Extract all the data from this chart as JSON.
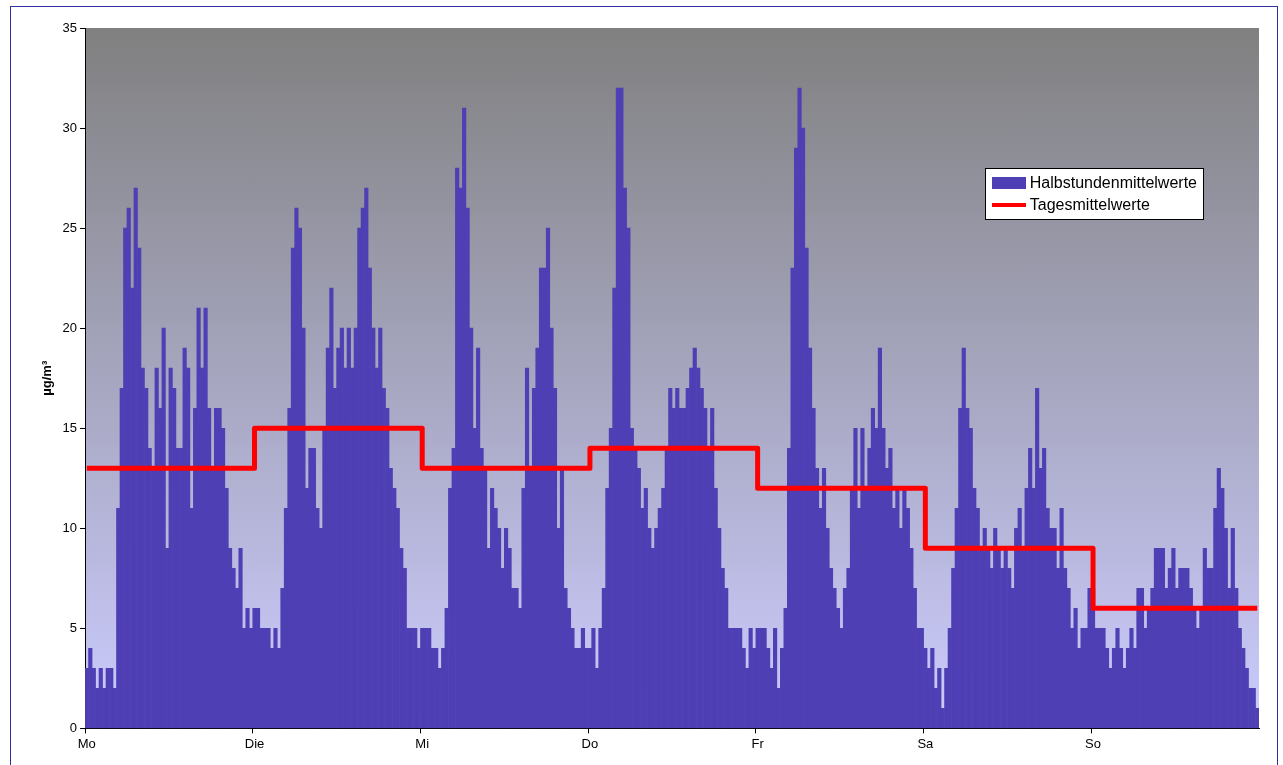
{
  "chart_data": {
    "type": "bar",
    "ylabel": "µg/m³",
    "categories": [
      "Mo",
      null,
      null,
      null,
      null,
      null,
      null,
      null,
      null,
      null,
      null,
      null,
      null,
      null,
      null,
      null,
      null,
      null,
      null,
      null,
      null,
      null,
      null,
      null,
      null,
      null,
      null,
      null,
      null,
      null,
      null,
      null,
      null,
      null,
      null,
      null,
      null,
      null,
      null,
      null,
      null,
      null,
      null,
      null,
      null,
      null,
      null,
      null,
      "Die",
      null,
      null,
      null,
      null,
      null,
      null,
      null,
      null,
      null,
      null,
      null,
      null,
      null,
      null,
      null,
      null,
      null,
      null,
      null,
      null,
      null,
      null,
      null,
      null,
      null,
      null,
      null,
      null,
      null,
      null,
      null,
      null,
      null,
      null,
      null,
      null,
      null,
      null,
      null,
      null,
      null,
      null,
      null,
      null,
      null,
      null,
      null,
      "Mi",
      null,
      null,
      null,
      null,
      null,
      null,
      null,
      null,
      null,
      null,
      null,
      null,
      null,
      null,
      null,
      null,
      null,
      null,
      null,
      null,
      null,
      null,
      null,
      null,
      null,
      null,
      null,
      null,
      null,
      null,
      null,
      null,
      null,
      null,
      null,
      null,
      null,
      null,
      null,
      null,
      null,
      null,
      null,
      null,
      null,
      null,
      null,
      "Do",
      null,
      null,
      null,
      null,
      null,
      null,
      null,
      null,
      null,
      null,
      null,
      null,
      null,
      null,
      null,
      null,
      null,
      null,
      null,
      null,
      null,
      null,
      null,
      null,
      null,
      null,
      null,
      null,
      null,
      null,
      null,
      null,
      null,
      null,
      null,
      null,
      null,
      null,
      null,
      null,
      null,
      null,
      null,
      null,
      null,
      null,
      null,
      "Fr",
      null,
      null,
      null,
      null,
      null,
      null,
      null,
      null,
      null,
      null,
      null,
      null,
      null,
      null,
      null,
      null,
      null,
      null,
      null,
      null,
      null,
      null,
      null,
      null,
      null,
      null,
      null,
      null,
      null,
      null,
      null,
      null,
      null,
      null,
      null,
      null,
      null,
      null,
      null,
      null,
      null,
      null,
      null,
      null,
      null,
      null,
      null,
      "Sa",
      null,
      null,
      null,
      null,
      null,
      null,
      null,
      null,
      null,
      null,
      null,
      null,
      null,
      null,
      null,
      null,
      null,
      null,
      null,
      null,
      null,
      null,
      null,
      null,
      null,
      null,
      null,
      null,
      null,
      null,
      null,
      null,
      null,
      null,
      null,
      null,
      null,
      null,
      null,
      null,
      null,
      null,
      null,
      null,
      null,
      null,
      null,
      "So",
      null,
      null,
      null,
      null,
      null,
      null,
      null,
      null,
      null,
      null,
      null,
      null,
      null,
      null,
      null,
      null,
      null,
      null,
      null,
      null,
      null,
      null,
      null,
      null,
      null,
      null,
      null,
      null,
      null,
      null,
      null,
      null,
      null,
      null,
      null,
      null,
      null,
      null,
      null,
      null,
      null,
      null,
      null,
      null,
      null,
      null,
      null
    ],
    "ylim": [
      0,
      35
    ],
    "yticks": [
      0,
      5,
      10,
      15,
      20,
      25,
      30,
      35
    ],
    "grid": false,
    "legend": "top right",
    "series": [
      {
        "name": "Halbstundenmittelwerte",
        "color": "#4f3fb4",
        "values": [
          3,
          4,
          3,
          2,
          3,
          2,
          3,
          3,
          2,
          11,
          17,
          25,
          26,
          22,
          27,
          24,
          18,
          17,
          14,
          13,
          18,
          16,
          20,
          9,
          18,
          17,
          14,
          14,
          19,
          18,
          11,
          16,
          21,
          18,
          21,
          16,
          13,
          16,
          16,
          15,
          12,
          9,
          8,
          7,
          9,
          5,
          6,
          5,
          6,
          6,
          5,
          5,
          5,
          4,
          5,
          4,
          7,
          11,
          16,
          24,
          26,
          25,
          20,
          12,
          14,
          14,
          11,
          10,
          15,
          19,
          22,
          17,
          19,
          20,
          18,
          20,
          18,
          20,
          25,
          26,
          27,
          23,
          20,
          18,
          20,
          17,
          16,
          13,
          12,
          11,
          9,
          8,
          5,
          5,
          5,
          4,
          5,
          5,
          5,
          4,
          4,
          3,
          4,
          6,
          12,
          14,
          28,
          27,
          31,
          26,
          20,
          15,
          19,
          14,
          13,
          9,
          12,
          11,
          10,
          8,
          10,
          9,
          7,
          7,
          6,
          12,
          18,
          13,
          17,
          19,
          23,
          23,
          25,
          20,
          17,
          10,
          13,
          7,
          6,
          5,
          4,
          4,
          5,
          4,
          4,
          5,
          3,
          5,
          7,
          12,
          15,
          22,
          32,
          32,
          27,
          25,
          15,
          14,
          13,
          11,
          12,
          10,
          9,
          10,
          11,
          12,
          14,
          17,
          16,
          17,
          16,
          16,
          17,
          18,
          19,
          18,
          17,
          16,
          14,
          16,
          12,
          10,
          8,
          7,
          5,
          5,
          5,
          5,
          4,
          3,
          5,
          4,
          5,
          5,
          5,
          4,
          3,
          5,
          2,
          4,
          6,
          14,
          23,
          29,
          32,
          30,
          24,
          19,
          16,
          13,
          11,
          13,
          10,
          8,
          7,
          6,
          5,
          7,
          8,
          12,
          15,
          11,
          15,
          12,
          14,
          16,
          15,
          19,
          15,
          13,
          14,
          11,
          12,
          10,
          12,
          11,
          9,
          7,
          5,
          5,
          4,
          3,
          4,
          2,
          3,
          1,
          3,
          5,
          8,
          11,
          16,
          19,
          16,
          15,
          12,
          11,
          9,
          10,
          9,
          8,
          10,
          9,
          8,
          9,
          8,
          7,
          10,
          11,
          9,
          12,
          14,
          12,
          17,
          13,
          14,
          11,
          10,
          10,
          8,
          11,
          8,
          7,
          5,
          6,
          4,
          5,
          5,
          7,
          7,
          5,
          5,
          5,
          4,
          3,
          4,
          5,
          4,
          3,
          4,
          5,
          4,
          7,
          7,
          5,
          6,
          7,
          9,
          9,
          9,
          7,
          8,
          9,
          7,
          8,
          8,
          8,
          7,
          6,
          5,
          6,
          9,
          8,
          8,
          11,
          13,
          12,
          10,
          7,
          10,
          7,
          5,
          4,
          3,
          2,
          2,
          1
        ]
      },
      {
        "name": "Tagesmittelwerte",
        "type": "step",
        "color": "#ff0000",
        "values": [
          13,
          13,
          13,
          13,
          13,
          13,
          13,
          13,
          13,
          13,
          13,
          13,
          13,
          13,
          13,
          13,
          13,
          13,
          13,
          13,
          13,
          13,
          13,
          13,
          13,
          13,
          13,
          13,
          13,
          13,
          13,
          13,
          13,
          13,
          13,
          13,
          13,
          13,
          13,
          13,
          13,
          13,
          13,
          13,
          13,
          13,
          13,
          13,
          15,
          15,
          15,
          15,
          15,
          15,
          15,
          15,
          15,
          15,
          15,
          15,
          15,
          15,
          15,
          15,
          15,
          15,
          15,
          15,
          15,
          15,
          15,
          15,
          15,
          15,
          15,
          15,
          15,
          15,
          15,
          15,
          15,
          15,
          15,
          15,
          15,
          15,
          15,
          15,
          15,
          15,
          15,
          15,
          15,
          15,
          15,
          15,
          13,
          13,
          13,
          13,
          13,
          13,
          13,
          13,
          13,
          13,
          13,
          13,
          13,
          13,
          13,
          13,
          13,
          13,
          13,
          13,
          13,
          13,
          13,
          13,
          13,
          13,
          13,
          13,
          13,
          13,
          13,
          13,
          13,
          13,
          13,
          13,
          13,
          13,
          13,
          13,
          13,
          13,
          13,
          13,
          13,
          13,
          13,
          13,
          14,
          14,
          14,
          14,
          14,
          14,
          14,
          14,
          14,
          14,
          14,
          14,
          14,
          14,
          14,
          14,
          14,
          14,
          14,
          14,
          14,
          14,
          14,
          14,
          14,
          14,
          14,
          14,
          14,
          14,
          14,
          14,
          14,
          14,
          14,
          14,
          14,
          14,
          14,
          14,
          14,
          14,
          14,
          14,
          14,
          14,
          14,
          14,
          12,
          12,
          12,
          12,
          12,
          12,
          12,
          12,
          12,
          12,
          12,
          12,
          12,
          12,
          12,
          12,
          12,
          12,
          12,
          12,
          12,
          12,
          12,
          12,
          12,
          12,
          12,
          12,
          12,
          12,
          12,
          12,
          12,
          12,
          12,
          12,
          12,
          12,
          12,
          12,
          12,
          12,
          12,
          12,
          12,
          12,
          12,
          12,
          9,
          9,
          9,
          9,
          9,
          9,
          9,
          9,
          9,
          9,
          9,
          9,
          9,
          9,
          9,
          9,
          9,
          9,
          9,
          9,
          9,
          9,
          9,
          9,
          9,
          9,
          9,
          9,
          9,
          9,
          9,
          9,
          9,
          9,
          9,
          9,
          9,
          9,
          9,
          9,
          9,
          9,
          9,
          9,
          9,
          9,
          9,
          9,
          6,
          6,
          6,
          6,
          6,
          6,
          6,
          6,
          6,
          6,
          6,
          6,
          6,
          6,
          6,
          6,
          6,
          6,
          6,
          6,
          6,
          6,
          6,
          6,
          6,
          6,
          6,
          6,
          6,
          6,
          6,
          6,
          6,
          6,
          6,
          6,
          6,
          6,
          6,
          6,
          6,
          6,
          6,
          6,
          6,
          6,
          6,
          6
        ]
      }
    ]
  }
}
